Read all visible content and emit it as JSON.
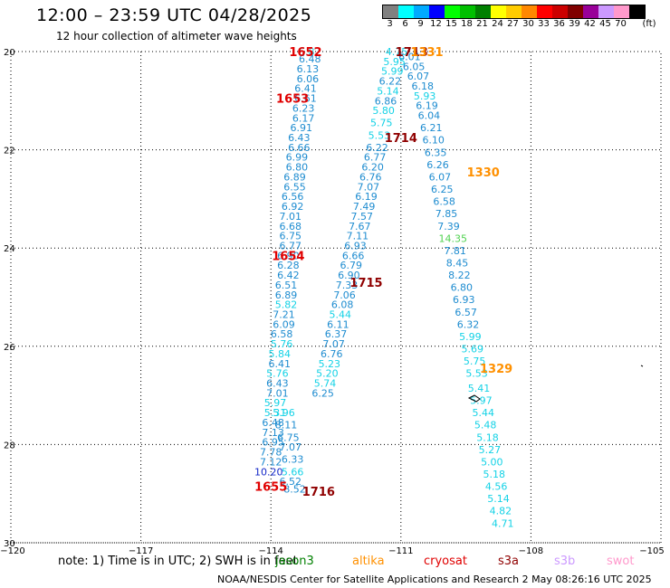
{
  "header": {
    "title": "12:00  –  23:59 UTC 04/28/2025",
    "subtitle": "12 hour collection of altimeter wave heights"
  },
  "scale": {
    "unit": "(ft)",
    "stops": [
      {
        "label": "3",
        "color": "#808080"
      },
      {
        "label": "6",
        "color": "#00ffff"
      },
      {
        "label": "9",
        "color": "#00aaff"
      },
      {
        "label": "12",
        "color": "#0000ff"
      },
      {
        "label": "15",
        "color": "#00ff00"
      },
      {
        "label": "18",
        "color": "#00c000"
      },
      {
        "label": "21",
        "color": "#008000"
      },
      {
        "label": "24",
        "color": "#ffff00"
      },
      {
        "label": "27",
        "color": "#ffcc00"
      },
      {
        "label": "30",
        "color": "#ff8800"
      },
      {
        "label": "33",
        "color": "#ff0000"
      },
      {
        "label": "36",
        "color": "#cc0000"
      },
      {
        "label": "39",
        "color": "#800000"
      },
      {
        "label": "42",
        "color": "#990099"
      },
      {
        "label": "45",
        "color": "#cc99ff"
      },
      {
        "label": "70",
        "color": "#ff99cc"
      },
      {
        "label": "",
        "color": "#000000"
      }
    ]
  },
  "axes": {
    "lat_ticks": [
      "20",
      "22",
      "24",
      "26",
      "28",
      "30"
    ],
    "lon_ticks": [
      "−120",
      "−117",
      "−114",
      "−111",
      "−108",
      "−105"
    ],
    "lat_range": [
      20,
      30
    ],
    "lon_range": [
      -120,
      -105
    ],
    "grid": "dotted"
  },
  "colors": {
    "wave_cyan": "#14d2e6",
    "wave_blue": "#1e8cd0",
    "wave_deep": "#1428c8",
    "wave_green": "#50d250",
    "time_red": "#e00000",
    "time_maroon": "#900000",
    "time_orange": "#ff9000"
  },
  "tracks": [
    {
      "name": "track-1652",
      "points": [
        {
          "lon": -113.1,
          "lat": 20.0,
          "v": "5.87",
          "c": "cyan"
        },
        {
          "lon": -113.1,
          "lat": 20.15,
          "v": "6.48",
          "c": "blue"
        },
        {
          "lon": -113.15,
          "lat": 20.35,
          "v": "6.13",
          "c": "blue"
        },
        {
          "lon": -113.15,
          "lat": 20.55,
          "v": "6.06",
          "c": "blue"
        },
        {
          "lon": -113.2,
          "lat": 20.75,
          "v": "6.41",
          "c": "blue"
        },
        {
          "lon": -113.2,
          "lat": 20.95,
          "v": "6.61",
          "c": "blue"
        },
        {
          "lon": -113.25,
          "lat": 21.15,
          "v": "6.23",
          "c": "blue"
        },
        {
          "lon": -113.25,
          "lat": 21.35,
          "v": "6.17",
          "c": "blue"
        },
        {
          "lon": -113.3,
          "lat": 21.55,
          "v": "6.91",
          "c": "blue"
        },
        {
          "lon": -113.35,
          "lat": 21.75,
          "v": "6.43",
          "c": "blue"
        },
        {
          "lon": -113.35,
          "lat": 21.95,
          "v": "6.66",
          "c": "blue"
        },
        {
          "lon": -113.4,
          "lat": 22.15,
          "v": "6.99",
          "c": "blue"
        },
        {
          "lon": -113.4,
          "lat": 22.35,
          "v": "6.80",
          "c": "blue"
        },
        {
          "lon": -113.45,
          "lat": 22.55,
          "v": "6.89",
          "c": "blue"
        },
        {
          "lon": -113.45,
          "lat": 22.75,
          "v": "6.55",
          "c": "blue"
        },
        {
          "lon": -113.5,
          "lat": 22.95,
          "v": "6.56",
          "c": "blue"
        },
        {
          "lon": -113.5,
          "lat": 23.15,
          "v": "6.92",
          "c": "blue"
        },
        {
          "lon": -113.55,
          "lat": 23.35,
          "v": "7.01",
          "c": "blue"
        },
        {
          "lon": -113.55,
          "lat": 23.55,
          "v": "6.68",
          "c": "blue"
        },
        {
          "lon": -113.55,
          "lat": 23.75,
          "v": "6.75",
          "c": "blue"
        },
        {
          "lon": -113.55,
          "lat": 23.95,
          "v": "6.77",
          "c": "blue"
        },
        {
          "lon": -113.6,
          "lat": 24.15,
          "v": "6.90",
          "c": "blue"
        },
        {
          "lon": -113.6,
          "lat": 24.35,
          "v": "6.28",
          "c": "blue"
        },
        {
          "lon": -113.6,
          "lat": 24.55,
          "v": "6.42",
          "c": "blue"
        },
        {
          "lon": -113.65,
          "lat": 24.75,
          "v": "6.51",
          "c": "blue"
        },
        {
          "lon": -113.65,
          "lat": 24.95,
          "v": "6.89",
          "c": "blue"
        },
        {
          "lon": -113.65,
          "lat": 25.15,
          "v": "5.82",
          "c": "cyan"
        },
        {
          "lon": -113.7,
          "lat": 25.35,
          "v": "7.21",
          "c": "blue"
        },
        {
          "lon": -113.7,
          "lat": 25.55,
          "v": "6.09",
          "c": "blue"
        },
        {
          "lon": -113.75,
          "lat": 25.75,
          "v": "6.58",
          "c": "blue"
        },
        {
          "lon": -113.75,
          "lat": 25.95,
          "v": "5.76",
          "c": "cyan"
        },
        {
          "lon": -113.8,
          "lat": 26.15,
          "v": "5.84",
          "c": "cyan"
        },
        {
          "lon": -113.8,
          "lat": 26.35,
          "v": "6.41",
          "c": "blue"
        },
        {
          "lon": -113.85,
          "lat": 26.55,
          "v": "5.76",
          "c": "cyan"
        },
        {
          "lon": -113.85,
          "lat": 26.75,
          "v": "6.43",
          "c": "blue"
        },
        {
          "lon": -113.85,
          "lat": 26.95,
          "v": "7.01",
          "c": "blue"
        },
        {
          "lon": -113.9,
          "lat": 27.15,
          "v": "5.97",
          "c": "cyan"
        },
        {
          "lon": -113.9,
          "lat": 27.35,
          "v": "5.31",
          "c": "cyan"
        },
        {
          "lon": -113.95,
          "lat": 27.55,
          "v": "6.48",
          "c": "blue"
        },
        {
          "lon": -113.95,
          "lat": 27.75,
          "v": "7.13",
          "c": "blue"
        },
        {
          "lon": -113.95,
          "lat": 27.95,
          "v": "6.95",
          "c": "blue"
        },
        {
          "lon": -114.0,
          "lat": 28.15,
          "v": "7.78",
          "c": "blue"
        },
        {
          "lon": -114.0,
          "lat": 28.35,
          "v": "7.12",
          "c": "blue"
        },
        {
          "lon": -114.05,
          "lat": 28.55,
          "v": "10.20",
          "c": "deep"
        }
      ]
    },
    {
      "name": "track-1653",
      "points": [
        {
          "lon": -113.45,
          "lat": 28.9,
          "v": "8.52",
          "c": "blue"
        },
        {
          "lon": -113.55,
          "lat": 28.75,
          "v": "6.52",
          "c": "blue"
        },
        {
          "lon": -113.5,
          "lat": 28.55,
          "v": "5.66",
          "c": "cyan"
        },
        {
          "lon": -113.5,
          "lat": 28.3,
          "v": "6.33",
          "c": "blue"
        },
        {
          "lon": -113.55,
          "lat": 28.05,
          "v": "7.07",
          "c": "blue"
        },
        {
          "lon": -113.6,
          "lat": 27.85,
          "v": "6.75",
          "c": "blue"
        },
        {
          "lon": -113.65,
          "lat": 27.6,
          "v": "8.11",
          "c": "blue"
        },
        {
          "lon": -113.7,
          "lat": 27.35,
          "v": "5.96",
          "c": "cyan"
        }
      ]
    },
    {
      "name": "track-1714",
      "points": [
        {
          "lon": -111.1,
          "lat": 20.0,
          "v": "4.75",
          "c": "cyan"
        },
        {
          "lon": -111.15,
          "lat": 20.2,
          "v": "5.95",
          "c": "cyan"
        },
        {
          "lon": -111.2,
          "lat": 20.4,
          "v": "5.99",
          "c": "cyan"
        },
        {
          "lon": -111.25,
          "lat": 20.6,
          "v": "6.22",
          "c": "blue"
        },
        {
          "lon": -111.3,
          "lat": 20.8,
          "v": "5.14",
          "c": "cyan"
        },
        {
          "lon": -111.35,
          "lat": 21.0,
          "v": "6.86",
          "c": "blue"
        },
        {
          "lon": -111.4,
          "lat": 21.2,
          "v": "5.80",
          "c": "cyan"
        },
        {
          "lon": -111.45,
          "lat": 21.45,
          "v": "5.75",
          "c": "cyan"
        },
        {
          "lon": -111.5,
          "lat": 21.7,
          "v": "5.53",
          "c": "cyan"
        },
        {
          "lon": -111.55,
          "lat": 21.95,
          "v": "6.22",
          "c": "blue"
        },
        {
          "lon": -111.6,
          "lat": 22.15,
          "v": "6.77",
          "c": "blue"
        },
        {
          "lon": -111.65,
          "lat": 22.35,
          "v": "6.20",
          "c": "blue"
        },
        {
          "lon": -111.7,
          "lat": 22.55,
          "v": "6.76",
          "c": "blue"
        },
        {
          "lon": -111.75,
          "lat": 22.75,
          "v": "7.07",
          "c": "blue"
        },
        {
          "lon": -111.8,
          "lat": 22.95,
          "v": "6.19",
          "c": "blue"
        },
        {
          "lon": -111.85,
          "lat": 23.15,
          "v": "7.49",
          "c": "blue"
        },
        {
          "lon": -111.9,
          "lat": 23.35,
          "v": "7.57",
          "c": "blue"
        },
        {
          "lon": -111.95,
          "lat": 23.55,
          "v": "7.67",
          "c": "blue"
        },
        {
          "lon": -112.0,
          "lat": 23.75,
          "v": "7.11",
          "c": "blue"
        },
        {
          "lon": -112.05,
          "lat": 23.95,
          "v": "6.93",
          "c": "blue"
        },
        {
          "lon": -112.1,
          "lat": 24.15,
          "v": "6.66",
          "c": "blue"
        },
        {
          "lon": -112.15,
          "lat": 24.35,
          "v": "6.79",
          "c": "blue"
        },
        {
          "lon": -112.2,
          "lat": 24.55,
          "v": "6.90",
          "c": "blue"
        },
        {
          "lon": -112.25,
          "lat": 24.75,
          "v": "7.33",
          "c": "blue"
        },
        {
          "lon": -112.3,
          "lat": 24.95,
          "v": "7.06",
          "c": "blue"
        },
        {
          "lon": -112.35,
          "lat": 25.15,
          "v": "6.08",
          "c": "blue"
        },
        {
          "lon": -112.4,
          "lat": 25.35,
          "v": "5.44",
          "c": "cyan"
        },
        {
          "lon": -112.45,
          "lat": 25.55,
          "v": "6.11",
          "c": "blue"
        },
        {
          "lon": -112.5,
          "lat": 25.75,
          "v": "6.37",
          "c": "blue"
        },
        {
          "lon": -112.55,
          "lat": 25.95,
          "v": "7.07",
          "c": "blue"
        },
        {
          "lon": -112.6,
          "lat": 26.15,
          "v": "6.76",
          "c": "blue"
        },
        {
          "lon": -112.65,
          "lat": 26.35,
          "v": "5.23",
          "c": "cyan"
        },
        {
          "lon": -112.7,
          "lat": 26.55,
          "v": "5.20",
          "c": "cyan"
        },
        {
          "lon": -112.75,
          "lat": 26.75,
          "v": "5.74",
          "c": "cyan"
        },
        {
          "lon": -112.8,
          "lat": 26.95,
          "v": "6.25",
          "c": "blue"
        }
      ]
    },
    {
      "name": "track-1713",
      "points": [
        {
          "lon": -110.8,
          "lat": 20.1,
          "v": "6.01",
          "c": "blue"
        },
        {
          "lon": -110.7,
          "lat": 20.3,
          "v": "6.05",
          "c": "blue"
        },
        {
          "lon": -110.6,
          "lat": 20.5,
          "v": "6.07",
          "c": "blue"
        },
        {
          "lon": -110.5,
          "lat": 20.7,
          "v": "6.18",
          "c": "blue"
        },
        {
          "lon": -110.45,
          "lat": 20.9,
          "v": "5.93",
          "c": "cyan"
        },
        {
          "lon": -110.4,
          "lat": 21.1,
          "v": "6.19",
          "c": "blue"
        },
        {
          "lon": -110.35,
          "lat": 21.3,
          "v": "6.04",
          "c": "blue"
        },
        {
          "lon": -110.3,
          "lat": 21.55,
          "v": "6.21",
          "c": "blue"
        },
        {
          "lon": -110.25,
          "lat": 21.8,
          "v": "6.10",
          "c": "blue"
        },
        {
          "lon": -110.2,
          "lat": 22.05,
          "v": "6.35",
          "c": "blue"
        },
        {
          "lon": -110.15,
          "lat": 22.3,
          "v": "6.26",
          "c": "blue"
        },
        {
          "lon": -110.1,
          "lat": 22.55,
          "v": "6.07",
          "c": "blue"
        },
        {
          "lon": -110.05,
          "lat": 22.8,
          "v": "6.25",
          "c": "blue"
        },
        {
          "lon": -110.0,
          "lat": 23.05,
          "v": "6.58",
          "c": "blue"
        },
        {
          "lon": -109.95,
          "lat": 23.3,
          "v": "7.85",
          "c": "blue"
        },
        {
          "lon": -109.9,
          "lat": 23.55,
          "v": "7.39",
          "c": "blue"
        },
        {
          "lon": -109.8,
          "lat": 23.8,
          "v": "14.35",
          "c": "green"
        },
        {
          "lon": -109.75,
          "lat": 24.05,
          "v": "7.81",
          "c": "blue"
        },
        {
          "lon": -109.7,
          "lat": 24.3,
          "v": "8.45",
          "c": "blue"
        },
        {
          "lon": -109.65,
          "lat": 24.55,
          "v": "8.22",
          "c": "blue"
        },
        {
          "lon": -109.6,
          "lat": 24.8,
          "v": "6.80",
          "c": "blue"
        },
        {
          "lon": -109.55,
          "lat": 25.05,
          "v": "6.93",
          "c": "blue"
        },
        {
          "lon": -109.5,
          "lat": 25.3,
          "v": "6.57",
          "c": "blue"
        },
        {
          "lon": -109.45,
          "lat": 25.55,
          "v": "6.32",
          "c": "blue"
        },
        {
          "lon": -109.4,
          "lat": 25.8,
          "v": "5.99",
          "c": "cyan"
        },
        {
          "lon": -109.35,
          "lat": 26.05,
          "v": "5.69",
          "c": "cyan"
        },
        {
          "lon": -109.3,
          "lat": 26.3,
          "v": "5.75",
          "c": "cyan"
        },
        {
          "lon": -109.25,
          "lat": 26.55,
          "v": "5.53",
          "c": "cyan"
        },
        {
          "lon": -109.2,
          "lat": 26.85,
          "v": "5.41",
          "c": "cyan"
        },
        {
          "lon": -109.15,
          "lat": 27.1,
          "v": "5.97",
          "c": "cyan"
        },
        {
          "lon": -109.1,
          "lat": 27.35,
          "v": "5.44",
          "c": "cyan"
        },
        {
          "lon": -109.05,
          "lat": 27.6,
          "v": "5.48",
          "c": "cyan"
        },
        {
          "lon": -109.0,
          "lat": 27.85,
          "v": "5.18",
          "c": "cyan"
        },
        {
          "lon": -108.95,
          "lat": 28.1,
          "v": "5.27",
          "c": "cyan"
        },
        {
          "lon": -108.9,
          "lat": 28.35,
          "v": "5.00",
          "c": "cyan"
        },
        {
          "lon": -108.85,
          "lat": 28.6,
          "v": "5.18",
          "c": "cyan"
        },
        {
          "lon": -108.8,
          "lat": 28.85,
          "v": "4.56",
          "c": "cyan"
        },
        {
          "lon": -108.75,
          "lat": 29.1,
          "v": "5.14",
          "c": "cyan"
        },
        {
          "lon": -108.7,
          "lat": 29.35,
          "v": "4.82",
          "c": "cyan"
        },
        {
          "lon": -108.65,
          "lat": 29.6,
          "v": "4.71",
          "c": "cyan"
        }
      ]
    }
  ],
  "time_labels": [
    {
      "lon": -113.2,
      "lat": 20.0,
      "text": "1652",
      "c": "red"
    },
    {
      "lon": -113.5,
      "lat": 20.95,
      "text": "1653",
      "c": "red"
    },
    {
      "lon": -113.6,
      "lat": 24.15,
      "text": "1654",
      "c": "red"
    },
    {
      "lon": -114.0,
      "lat": 28.85,
      "text": "1655",
      "c": "red"
    },
    {
      "lon": -110.75,
      "lat": 20.0,
      "text": "1713",
      "c": "maroon"
    },
    {
      "lon": -110.4,
      "lat": 20.0,
      "text": "1331",
      "c": "orange"
    },
    {
      "lon": -111.0,
      "lat": 21.75,
      "text": "1714",
      "c": "maroon"
    },
    {
      "lon": -111.8,
      "lat": 24.7,
      "text": "1715",
      "c": "maroon"
    },
    {
      "lon": -112.9,
      "lat": 28.95,
      "text": "1716",
      "c": "maroon"
    },
    {
      "lon": -109.1,
      "lat": 22.45,
      "text": "1330",
      "c": "orange"
    },
    {
      "lon": -108.8,
      "lat": 26.45,
      "text": "1329",
      "c": "orange"
    }
  ],
  "note": "note:  1) Time is in UTC;  2) SWH is in feet",
  "satellites": [
    {
      "label": "jason3",
      "color": "#008000"
    },
    {
      "label": "altika",
      "color": "#ff9000"
    },
    {
      "label": "cryosat",
      "color": "#e00000"
    },
    {
      "label": "s3a",
      "color": "#900000"
    },
    {
      "label": "s3b",
      "color": "#cc99ff"
    },
    {
      "label": "swot",
      "color": "#ff99cc"
    }
  ],
  "footer": "NOAA/NESDIS Center for Satellite Applications and Research     2 May 08:26:16 UTC 2025"
}
